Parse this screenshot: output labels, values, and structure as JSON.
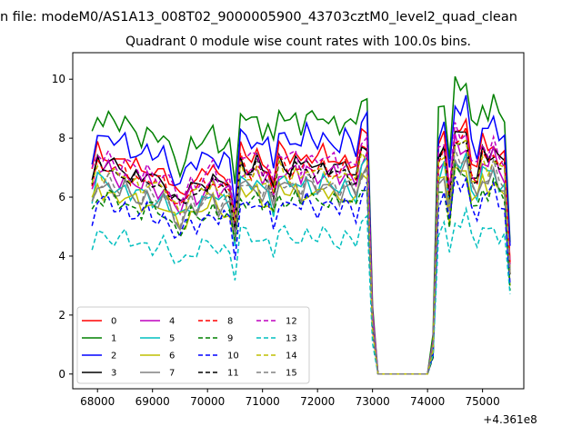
{
  "figure": {
    "suptitle": "n file: modeM0/AS1A13_008T02_9000005900_43703cztM0_level2_quad_clean",
    "title": "Quadrant 0 module wise count rates with 100.0s bins.",
    "offset_label": "+4.361e8"
  },
  "chart_data": {
    "type": "line",
    "title": "Quadrant 0 module wise count rates with 100.0s bins.",
    "xlabel": "",
    "ylabel": "",
    "x_offset": 436100000,
    "xlim": [
      67550,
      75750
    ],
    "ylim": [
      -0.5,
      10.9
    ],
    "xticks": [
      68000,
      69000,
      70000,
      71000,
      72000,
      73000,
      74000,
      75000
    ],
    "yticks": [
      0,
      2,
      4,
      6,
      8,
      10
    ],
    "grid": false,
    "legend_position": "lower-left",
    "legend_columns": 4,
    "series": [
      {
        "name": "0",
        "color": "#ff0000",
        "dash": "solid",
        "level": 7.6
      },
      {
        "name": "1",
        "color": "#008000",
        "dash": "solid",
        "level": 8.9
      },
      {
        "name": "2",
        "color": "#0000ff",
        "dash": "solid",
        "level": 8.2
      },
      {
        "name": "3",
        "color": "#000000",
        "dash": "solid",
        "level": 7.3
      },
      {
        "name": "4",
        "color": "#bf00bf",
        "dash": "solid",
        "level": 7.0
      },
      {
        "name": "5",
        "color": "#00bfbf",
        "dash": "solid",
        "level": 6.6
      },
      {
        "name": "6",
        "color": "#bfbf00",
        "dash": "solid",
        "level": 6.3
      },
      {
        "name": "7",
        "color": "#808080",
        "dash": "solid",
        "level": 6.5
      },
      {
        "name": "8",
        "color": "#ff0000",
        "dash": "dashed",
        "level": 7.2
      },
      {
        "name": "9",
        "color": "#008000",
        "dash": "dashed",
        "level": 6.1
      },
      {
        "name": "10",
        "color": "#0000ff",
        "dash": "dashed",
        "level": 5.9
      },
      {
        "name": "11",
        "color": "#000000",
        "dash": "dashed",
        "level": 7.1
      },
      {
        "name": "12",
        "color": "#bf00bf",
        "dash": "dashed",
        "level": 7.5
      },
      {
        "name": "13",
        "color": "#00bfbf",
        "dash": "dashed",
        "level": 4.8
      },
      {
        "name": "14",
        "color": "#bfbf00",
        "dash": "dashed",
        "level": 7.0
      },
      {
        "name": "15",
        "color": "#808080",
        "dash": "dashed",
        "level": 6.6
      }
    ],
    "x": [
      67900,
      68000,
      68100,
      68200,
      68300,
      68400,
      68500,
      68600,
      68700,
      68800,
      68900,
      69000,
      69100,
      69200,
      69300,
      69400,
      69500,
      69600,
      69700,
      69800,
      69900,
      70000,
      70100,
      70200,
      70300,
      70400,
      70500,
      70600,
      70700,
      70800,
      70900,
      71000,
      71100,
      71200,
      71300,
      71400,
      71500,
      71600,
      71700,
      71800,
      71900,
      72000,
      72100,
      72200,
      72300,
      72400,
      72500,
      72600,
      72700,
      72800,
      72900,
      73000,
      73100,
      73200,
      73300,
      73400,
      73500,
      73600,
      73700,
      73800,
      73900,
      74000,
      74100,
      74200,
      74300,
      74400,
      74500,
      74600,
      74700,
      74800,
      74900,
      75000,
      75100,
      75200,
      75300,
      75400,
      75500
    ],
    "shape": [
      0.9,
      1.0,
      0.97,
      0.99,
      0.96,
      0.94,
      0.97,
      0.92,
      0.93,
      0.9,
      0.94,
      0.9,
      0.89,
      0.91,
      0.86,
      0.82,
      0.79,
      0.83,
      0.88,
      0.85,
      0.89,
      0.9,
      0.93,
      0.87,
      0.89,
      0.88,
      0.7,
      1.0,
      0.97,
      0.96,
      0.99,
      0.93,
      0.95,
      0.86,
      1.0,
      0.98,
      0.96,
      0.99,
      0.94,
      1.0,
      0.97,
      0.95,
      0.99,
      0.96,
      0.97,
      0.93,
      0.98,
      0.95,
      0.92,
      1.05,
      1.07,
      0.25,
      0.0,
      0.0,
      0.0,
      0.0,
      0.0,
      0.0,
      0.0,
      0.0,
      0.0,
      0.0,
      0.12,
      1.0,
      1.05,
      0.84,
      1.12,
      1.08,
      1.12,
      0.95,
      0.92,
      1.04,
      1.0,
      1.06,
      0.98,
      0.97,
      0.5
    ]
  }
}
